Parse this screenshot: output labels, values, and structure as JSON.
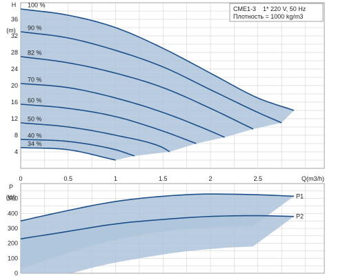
{
  "chart_data": [
    {
      "type": "line",
      "title": "",
      "xlabel": "Q(m3/h)",
      "ylabel": "H",
      "yunit": "(m)",
      "xlim": [
        0,
        3.2
      ],
      "ylim": [
        0,
        40
      ],
      "x_ticks": [
        "0",
        "0.5",
        "1",
        "1.5",
        "2",
        "2.5"
      ],
      "y_ticks": [
        "4",
        "8",
        "12",
        "16",
        "20",
        "24",
        "28",
        "32",
        "36"
      ],
      "info_lines": [
        "CME1-3    1* 220 V, 50 Hz",
        "Плотность = 1000 kg/m3"
      ],
      "grid": true,
      "series": [
        {
          "name": "100 %",
          "x": [
            0,
            0.5,
            1.0,
            1.5,
            2.0,
            2.5,
            2.88
          ],
          "y": [
            38.5,
            37.0,
            34.0,
            29.0,
            23.0,
            17.0,
            14.0
          ]
        },
        {
          "name": "90 %",
          "x": [
            0,
            0.5,
            1.0,
            1.5,
            2.0,
            2.5,
            2.75
          ],
          "y": [
            33.0,
            31.5,
            28.5,
            24.5,
            19.0,
            13.5,
            11.0
          ]
        },
        {
          "name": "82 %",
          "x": [
            0,
            0.5,
            1.0,
            1.5,
            2.0,
            2.45
          ],
          "y": [
            27.0,
            25.5,
            23.0,
            19.5,
            14.5,
            9.5
          ]
        },
        {
          "name": "70 %",
          "x": [
            0,
            0.5,
            1.0,
            1.5,
            2.0,
            2.15
          ],
          "y": [
            20.5,
            19.5,
            17.0,
            13.5,
            9.0,
            7.5
          ]
        },
        {
          "name": "60 %",
          "x": [
            0,
            0.5,
            1.0,
            1.5,
            1.85
          ],
          "y": [
            15.5,
            14.5,
            12.5,
            9.0,
            6.0
          ]
        },
        {
          "name": "50 %",
          "x": [
            0,
            0.5,
            1.0,
            1.5,
            1.57
          ],
          "y": [
            11.0,
            10.0,
            8.0,
            5.0,
            4.0
          ]
        },
        {
          "name": "40 %",
          "x": [
            0,
            0.5,
            1.0,
            1.2
          ],
          "y": [
            7.0,
            6.5,
            4.5,
            3.0
          ]
        },
        {
          "name": "34 %",
          "x": [
            0,
            0.5,
            1.0
          ],
          "y": [
            5.0,
            4.5,
            2.0
          ]
        }
      ]
    },
    {
      "type": "line",
      "title": "",
      "xlabel": "",
      "ylabel": "P",
      "yunit": "(W)",
      "xlim": [
        0,
        3.2
      ],
      "ylim": [
        0,
        600
      ],
      "y_ticks": [
        "0",
        "100",
        "200",
        "300",
        "400",
        "500"
      ],
      "grid": true,
      "series": [
        {
          "name": "P1",
          "x": [
            0,
            0.5,
            1.0,
            1.5,
            2.0,
            2.5,
            2.88
          ],
          "y": [
            350,
            420,
            480,
            515,
            530,
            525,
            515
          ]
        },
        {
          "name": "P2",
          "x": [
            0,
            0.5,
            1.0,
            1.5,
            2.0,
            2.5,
            2.88
          ],
          "y": [
            230,
            280,
            330,
            360,
            380,
            385,
            380
          ]
        }
      ]
    }
  ]
}
